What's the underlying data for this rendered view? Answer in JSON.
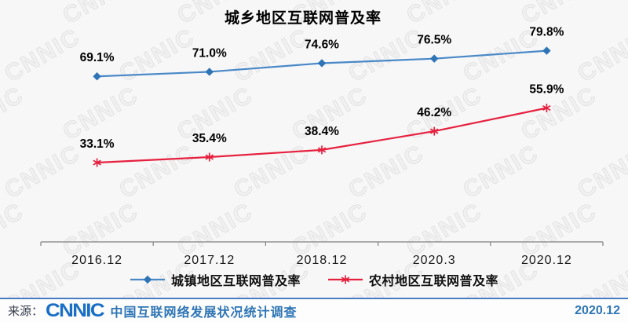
{
  "chart_data": {
    "type": "line",
    "title": "城乡地区互联网普及率",
    "categories": [
      "2016.12",
      "2017.12",
      "2018.12",
      "2020.3",
      "2020.12"
    ],
    "series": [
      {
        "name": "城镇地区互联网普及率",
        "values": [
          69.1,
          71.0,
          74.6,
          76.5,
          79.8
        ],
        "line_color": "#4a89c8",
        "marker_color": "#2e74b6",
        "marker": "diamond"
      },
      {
        "name": "农村地区互联网普及率",
        "values": [
          33.1,
          35.4,
          38.4,
          46.2,
          55.9
        ],
        "line_color": "#e6213f",
        "marker_color": "#e6213f",
        "marker": "asterisk"
      }
    ],
    "xlabel": "",
    "ylabel": "",
    "ylim": [
      0,
      90
    ],
    "value_suffix": "%",
    "value_label_format": "one_decimal",
    "grid": false,
    "legend_position": "bottom",
    "axis_color": "#808080",
    "label_color": "#000000"
  },
  "watermark": {
    "text": "CNNIC",
    "color": "#e3e3e3"
  },
  "footer": {
    "source_label": "来源：",
    "logo": "CNNIC",
    "source_text": "中国互联网络发展状况统计调查",
    "date": "2020.12",
    "accent_color": "#2e75b5"
  }
}
